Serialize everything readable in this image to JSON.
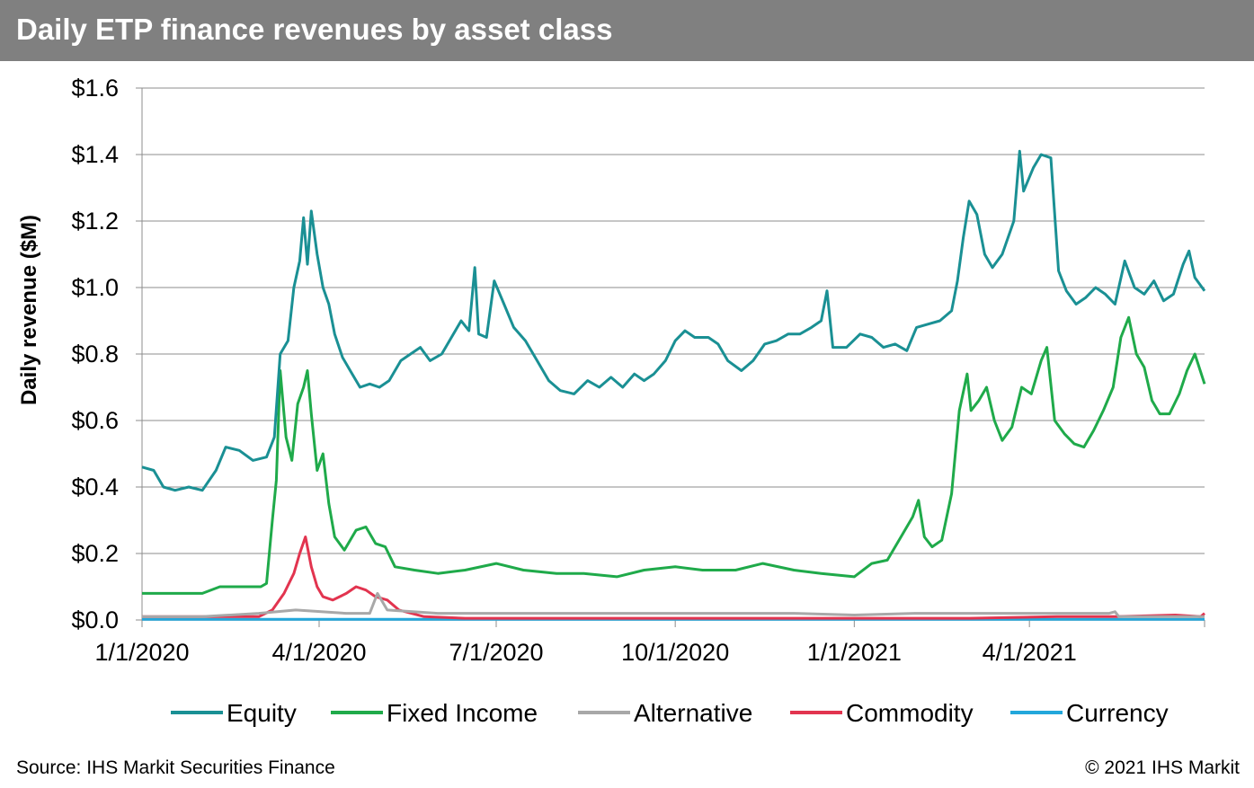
{
  "header": {
    "title": "Daily ETP finance revenues by asset class"
  },
  "footer": {
    "source": "Source: IHS Markit Securities Finance",
    "copyright": "© 2021 IHS Markit"
  },
  "chart_data": {
    "type": "line",
    "title": "Daily ETP finance revenues by asset class",
    "xlabel": "",
    "ylabel": "Daily revenue ($M)",
    "ylim": [
      0,
      1.6
    ],
    "xlim": [
      "2020-01-01",
      "2021-06-30"
    ],
    "y_ticks": [
      0,
      0.2,
      0.4,
      0.6,
      0.8,
      1.0,
      1.2,
      1.4,
      1.6
    ],
    "y_tick_labels": [
      "$0.0",
      "$0.2",
      "$0.4",
      "$0.6",
      "$0.8",
      "$1.0",
      "$1.2",
      "$1.4",
      "$1.6"
    ],
    "x_ticks": [
      "2020-01-01",
      "2020-04-01",
      "2020-07-01",
      "2020-10-01",
      "2021-01-01",
      "2021-04-01"
    ],
    "x_tick_labels": [
      "1/1/2020",
      "4/1/2020",
      "7/1/2020",
      "10/1/2020",
      "1/1/2021",
      "4/1/2021"
    ],
    "grid": true,
    "legend_position": "bottom",
    "series": [
      {
        "name": "Equity",
        "color": "#1a9094",
        "points": [
          [
            "2020-01-01",
            0.46
          ],
          [
            "2020-01-07",
            0.45
          ],
          [
            "2020-01-12",
            0.4
          ],
          [
            "2020-01-18",
            0.39
          ],
          [
            "2020-01-25",
            0.4
          ],
          [
            "2020-02-01",
            0.39
          ],
          [
            "2020-02-08",
            0.45
          ],
          [
            "2020-02-13",
            0.52
          ],
          [
            "2020-02-20",
            0.51
          ],
          [
            "2020-02-27",
            0.48
          ],
          [
            "2020-03-05",
            0.49
          ],
          [
            "2020-03-09",
            0.55
          ],
          [
            "2020-03-12",
            0.8
          ],
          [
            "2020-03-16",
            0.84
          ],
          [
            "2020-03-19",
            1.0
          ],
          [
            "2020-03-22",
            1.08
          ],
          [
            "2020-03-24",
            1.21
          ],
          [
            "2020-03-26",
            1.07
          ],
          [
            "2020-03-28",
            1.23
          ],
          [
            "2020-03-31",
            1.1
          ],
          [
            "2020-04-03",
            1.0
          ],
          [
            "2020-04-06",
            0.95
          ],
          [
            "2020-04-09",
            0.86
          ],
          [
            "2020-04-13",
            0.79
          ],
          [
            "2020-04-17",
            0.75
          ],
          [
            "2020-04-22",
            0.7
          ],
          [
            "2020-04-27",
            0.71
          ],
          [
            "2020-05-02",
            0.7
          ],
          [
            "2020-05-07",
            0.72
          ],
          [
            "2020-05-13",
            0.78
          ],
          [
            "2020-05-18",
            0.8
          ],
          [
            "2020-05-23",
            0.82
          ],
          [
            "2020-05-28",
            0.78
          ],
          [
            "2020-06-03",
            0.8
          ],
          [
            "2020-06-08",
            0.85
          ],
          [
            "2020-06-13",
            0.9
          ],
          [
            "2020-06-17",
            0.87
          ],
          [
            "2020-06-20",
            1.06
          ],
          [
            "2020-06-22",
            0.86
          ],
          [
            "2020-06-26",
            0.85
          ],
          [
            "2020-06-30",
            1.02
          ],
          [
            "2020-07-05",
            0.95
          ],
          [
            "2020-07-10",
            0.88
          ],
          [
            "2020-07-16",
            0.84
          ],
          [
            "2020-07-22",
            0.78
          ],
          [
            "2020-07-28",
            0.72
          ],
          [
            "2020-08-03",
            0.69
          ],
          [
            "2020-08-10",
            0.68
          ],
          [
            "2020-08-17",
            0.72
          ],
          [
            "2020-08-23",
            0.7
          ],
          [
            "2020-08-29",
            0.73
          ],
          [
            "2020-09-04",
            0.7
          ],
          [
            "2020-09-10",
            0.74
          ],
          [
            "2020-09-15",
            0.72
          ],
          [
            "2020-09-20",
            0.74
          ],
          [
            "2020-09-26",
            0.78
          ],
          [
            "2020-10-01",
            0.84
          ],
          [
            "2020-10-06",
            0.87
          ],
          [
            "2020-10-11",
            0.85
          ],
          [
            "2020-10-18",
            0.85
          ],
          [
            "2020-10-23",
            0.83
          ],
          [
            "2020-10-28",
            0.78
          ],
          [
            "2020-11-04",
            0.75
          ],
          [
            "2020-11-10",
            0.78
          ],
          [
            "2020-11-16",
            0.83
          ],
          [
            "2020-11-22",
            0.84
          ],
          [
            "2020-11-28",
            0.86
          ],
          [
            "2020-12-04",
            0.86
          ],
          [
            "2020-12-10",
            0.88
          ],
          [
            "2020-12-15",
            0.9
          ],
          [
            "2020-12-18",
            0.99
          ],
          [
            "2020-12-21",
            0.82
          ],
          [
            "2020-12-28",
            0.82
          ],
          [
            "2021-01-04",
            0.86
          ],
          [
            "2021-01-10",
            0.85
          ],
          [
            "2021-01-16",
            0.82
          ],
          [
            "2021-01-22",
            0.83
          ],
          [
            "2021-01-28",
            0.81
          ],
          [
            "2021-02-02",
            0.88
          ],
          [
            "2021-02-08",
            0.89
          ],
          [
            "2021-02-14",
            0.9
          ],
          [
            "2021-02-20",
            0.93
          ],
          [
            "2021-02-23",
            1.02
          ],
          [
            "2021-02-26",
            1.15
          ],
          [
            "2021-03-01",
            1.26
          ],
          [
            "2021-03-05",
            1.22
          ],
          [
            "2021-03-09",
            1.1
          ],
          [
            "2021-03-13",
            1.06
          ],
          [
            "2021-03-18",
            1.1
          ],
          [
            "2021-03-24",
            1.2
          ],
          [
            "2021-03-27",
            1.41
          ],
          [
            "2021-03-29",
            1.29
          ],
          [
            "2021-04-03",
            1.36
          ],
          [
            "2021-04-07",
            1.4
          ],
          [
            "2021-04-12",
            1.39
          ],
          [
            "2021-04-16",
            1.05
          ],
          [
            "2021-04-20",
            0.99
          ],
          [
            "2021-04-25",
            0.95
          ],
          [
            "2021-04-30",
            0.97
          ],
          [
            "2021-05-05",
            1.0
          ],
          [
            "2021-05-10",
            0.98
          ],
          [
            "2021-05-15",
            0.95
          ],
          [
            "2021-05-20",
            1.08
          ],
          [
            "2021-05-25",
            1.0
          ],
          [
            "2021-05-30",
            0.98
          ],
          [
            "2021-06-04",
            1.02
          ],
          [
            "2021-06-09",
            0.96
          ],
          [
            "2021-06-14",
            0.98
          ],
          [
            "2021-06-19",
            1.07
          ],
          [
            "2021-06-22",
            1.11
          ],
          [
            "2021-06-25",
            1.03
          ],
          [
            "2021-06-30",
            0.99
          ]
        ]
      },
      {
        "name": "Fixed Income",
        "color": "#1faa4a",
        "points": [
          [
            "2020-01-01",
            0.08
          ],
          [
            "2020-01-15",
            0.08
          ],
          [
            "2020-02-01",
            0.08
          ],
          [
            "2020-02-10",
            0.1
          ],
          [
            "2020-02-20",
            0.1
          ],
          [
            "2020-03-02",
            0.1
          ],
          [
            "2020-03-05",
            0.11
          ],
          [
            "2020-03-08",
            0.3
          ],
          [
            "2020-03-10",
            0.42
          ],
          [
            "2020-03-12",
            0.75
          ],
          [
            "2020-03-15",
            0.55
          ],
          [
            "2020-03-18",
            0.48
          ],
          [
            "2020-03-21",
            0.65
          ],
          [
            "2020-03-24",
            0.7
          ],
          [
            "2020-03-26",
            0.75
          ],
          [
            "2020-03-28",
            0.62
          ],
          [
            "2020-03-31",
            0.45
          ],
          [
            "2020-04-03",
            0.5
          ],
          [
            "2020-04-06",
            0.35
          ],
          [
            "2020-04-09",
            0.25
          ],
          [
            "2020-04-14",
            0.21
          ],
          [
            "2020-04-20",
            0.27
          ],
          [
            "2020-04-25",
            0.28
          ],
          [
            "2020-04-30",
            0.23
          ],
          [
            "2020-05-05",
            0.22
          ],
          [
            "2020-05-10",
            0.16
          ],
          [
            "2020-05-20",
            0.15
          ],
          [
            "2020-06-01",
            0.14
          ],
          [
            "2020-06-15",
            0.15
          ],
          [
            "2020-07-01",
            0.17
          ],
          [
            "2020-07-15",
            0.15
          ],
          [
            "2020-08-01",
            0.14
          ],
          [
            "2020-08-15",
            0.14
          ],
          [
            "2020-09-01",
            0.13
          ],
          [
            "2020-09-15",
            0.15
          ],
          [
            "2020-10-01",
            0.16
          ],
          [
            "2020-10-15",
            0.15
          ],
          [
            "2020-11-01",
            0.15
          ],
          [
            "2020-11-15",
            0.17
          ],
          [
            "2020-12-01",
            0.15
          ],
          [
            "2020-12-15",
            0.14
          ],
          [
            "2021-01-01",
            0.13
          ],
          [
            "2021-01-10",
            0.17
          ],
          [
            "2021-01-18",
            0.18
          ],
          [
            "2021-01-26",
            0.26
          ],
          [
            "2021-01-31",
            0.31
          ],
          [
            "2021-02-03",
            0.36
          ],
          [
            "2021-02-06",
            0.25
          ],
          [
            "2021-02-10",
            0.22
          ],
          [
            "2021-02-15",
            0.24
          ],
          [
            "2021-02-20",
            0.38
          ],
          [
            "2021-02-24",
            0.63
          ],
          [
            "2021-02-28",
            0.74
          ],
          [
            "2021-03-02",
            0.63
          ],
          [
            "2021-03-06",
            0.66
          ],
          [
            "2021-03-10",
            0.7
          ],
          [
            "2021-03-14",
            0.6
          ],
          [
            "2021-03-18",
            0.54
          ],
          [
            "2021-03-23",
            0.58
          ],
          [
            "2021-03-28",
            0.7
          ],
          [
            "2021-04-02",
            0.68
          ],
          [
            "2021-04-07",
            0.78
          ],
          [
            "2021-04-10",
            0.82
          ],
          [
            "2021-04-14",
            0.6
          ],
          [
            "2021-04-19",
            0.56
          ],
          [
            "2021-04-24",
            0.53
          ],
          [
            "2021-04-29",
            0.52
          ],
          [
            "2021-05-04",
            0.57
          ],
          [
            "2021-05-09",
            0.63
          ],
          [
            "2021-05-14",
            0.7
          ],
          [
            "2021-05-18",
            0.85
          ],
          [
            "2021-05-22",
            0.91
          ],
          [
            "2021-05-26",
            0.8
          ],
          [
            "2021-05-30",
            0.76
          ],
          [
            "2021-06-03",
            0.66
          ],
          [
            "2021-06-07",
            0.62
          ],
          [
            "2021-06-12",
            0.62
          ],
          [
            "2021-06-17",
            0.68
          ],
          [
            "2021-06-21",
            0.75
          ],
          [
            "2021-06-25",
            0.8
          ],
          [
            "2021-06-30",
            0.71
          ]
        ]
      },
      {
        "name": "Alternative",
        "color": "#a8a8a8",
        "points": [
          [
            "2020-01-01",
            0.01
          ],
          [
            "2020-02-01",
            0.01
          ],
          [
            "2020-03-01",
            0.02
          ],
          [
            "2020-03-20",
            0.03
          ],
          [
            "2020-04-15",
            0.02
          ],
          [
            "2020-04-27",
            0.02
          ],
          [
            "2020-05-01",
            0.08
          ],
          [
            "2020-05-06",
            0.03
          ],
          [
            "2020-06-01",
            0.02
          ],
          [
            "2020-07-01",
            0.02
          ],
          [
            "2020-08-01",
            0.02
          ],
          [
            "2020-09-01",
            0.02
          ],
          [
            "2020-10-01",
            0.02
          ],
          [
            "2020-11-01",
            0.02
          ],
          [
            "2020-12-01",
            0.02
          ],
          [
            "2021-01-01",
            0.015
          ],
          [
            "2021-02-01",
            0.02
          ],
          [
            "2021-03-01",
            0.02
          ],
          [
            "2021-04-01",
            0.02
          ],
          [
            "2021-05-01",
            0.02
          ],
          [
            "2021-05-12",
            0.02
          ],
          [
            "2021-05-15",
            0.025
          ],
          [
            "2021-05-17",
            0.01
          ],
          [
            "2021-06-01",
            0.01
          ],
          [
            "2021-06-30",
            0.01
          ]
        ]
      },
      {
        "name": "Commodity",
        "color": "#e2344f",
        "points": [
          [
            "2020-01-01",
            0.01
          ],
          [
            "2020-02-01",
            0.01
          ],
          [
            "2020-03-01",
            0.01
          ],
          [
            "2020-03-08",
            0.03
          ],
          [
            "2020-03-14",
            0.08
          ],
          [
            "2020-03-19",
            0.14
          ],
          [
            "2020-03-22",
            0.2
          ],
          [
            "2020-03-25",
            0.25
          ],
          [
            "2020-03-28",
            0.16
          ],
          [
            "2020-03-31",
            0.1
          ],
          [
            "2020-04-03",
            0.07
          ],
          [
            "2020-04-08",
            0.06
          ],
          [
            "2020-04-15",
            0.08
          ],
          [
            "2020-04-20",
            0.1
          ],
          [
            "2020-04-25",
            0.09
          ],
          [
            "2020-04-30",
            0.07
          ],
          [
            "2020-05-06",
            0.06
          ],
          [
            "2020-05-12",
            0.03
          ],
          [
            "2020-05-25",
            0.01
          ],
          [
            "2020-06-15",
            0.005
          ],
          [
            "2020-08-01",
            0.005
          ],
          [
            "2020-10-01",
            0.005
          ],
          [
            "2020-12-01",
            0.005
          ],
          [
            "2021-01-15",
            0.005
          ],
          [
            "2021-03-01",
            0.005
          ],
          [
            "2021-04-15",
            0.01
          ],
          [
            "2021-05-15",
            0.01
          ],
          [
            "2021-06-15",
            0.015
          ],
          [
            "2021-06-28",
            0.01
          ],
          [
            "2021-06-30",
            0.02
          ]
        ]
      },
      {
        "name": "Currency",
        "color": "#22a7db",
        "points": [
          [
            "2020-01-01",
            0.002
          ],
          [
            "2020-06-01",
            0.002
          ],
          [
            "2021-01-01",
            0.002
          ],
          [
            "2021-06-30",
            0.002
          ]
        ]
      }
    ]
  }
}
